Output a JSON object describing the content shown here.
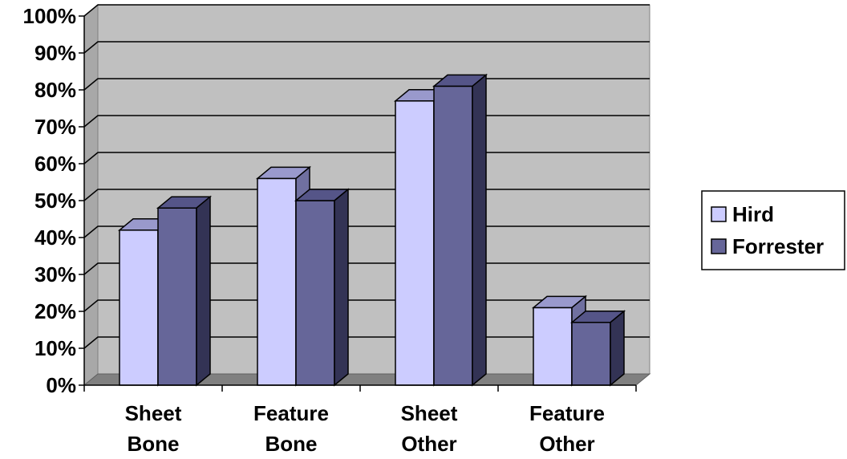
{
  "chart_data": {
    "type": "bar",
    "title": "",
    "xlabel": "",
    "ylabel": "",
    "ylim": [
      0,
      100
    ],
    "y_tick_suffix": "%",
    "y_ticks": [
      0,
      10,
      20,
      30,
      40,
      50,
      60,
      70,
      80,
      90,
      100
    ],
    "categories": [
      [
        "Sheet",
        "Bone"
      ],
      [
        "Feature",
        "Bone"
      ],
      [
        "Sheet",
        "Other"
      ],
      [
        "Feature",
        "Other"
      ]
    ],
    "series": [
      {
        "name": "Hird",
        "values": [
          42,
          56,
          77,
          21
        ],
        "color": "#ccccff",
        "top_color": "#9999cc",
        "side_color": "#7070a0"
      },
      {
        "name": "Forrester",
        "values": [
          48,
          50,
          81,
          17
        ],
        "color": "#666699",
        "top_color": "#555588",
        "side_color": "#333355"
      }
    ],
    "grid": true,
    "plot_background": "#c0c0c0",
    "floor_color": "#808080",
    "legend_position": "right",
    "three_d": true
  }
}
